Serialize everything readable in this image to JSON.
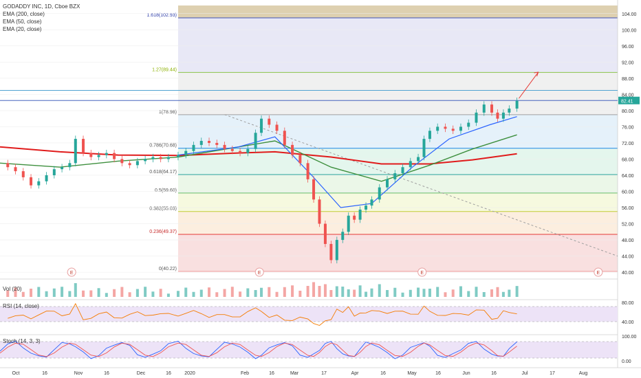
{
  "legend": {
    "symbol": "GODADDY INC, 1D, Cboe BZX",
    "ema200": "EMA (200, close)",
    "ema50": "EMA (50, close)",
    "ema20": "EMA (20, close)",
    "vol": "Vol (20)",
    "rsi": "RSI (14, close)",
    "stoch": "Stoch (14, 3, 3)"
  },
  "price_scale": [
    "104.00",
    "100.00",
    "96.00",
    "92.00",
    "88.00",
    "84.00",
    "80.00",
    "76.00",
    "72.00",
    "68.00",
    "64.00",
    "60.00",
    "56.00",
    "52.00",
    "48.00",
    "44.00",
    "40.00"
  ],
  "last_price": "82.41",
  "rsi_scale": [
    "80.00",
    "40.00"
  ],
  "stoch_scale": [
    "100.00",
    "0.00"
  ],
  "time_axis": [
    "Oct",
    "16",
    "Nov",
    "16",
    "Dec",
    "16",
    "2020",
    "Feb",
    "16",
    "Mar",
    "17",
    "Apr",
    "16",
    "May",
    "16",
    "Jun",
    "16",
    "Jul",
    "17",
    "Aug"
  ],
  "earnings_marker": "E",
  "colors": {
    "up": "#26a69a",
    "down": "#ef5350",
    "ema200": "#e01b1b",
    "ema50": "#3d8f3d",
    "ema20": "#2962ff",
    "rsi": "#f57c00",
    "stoch_k": "#2962ff",
    "stoch_d": "#ef5350",
    "fib_text_1618": "#2a3aa8",
    "fib_text_127": "#8bb000"
  },
  "chart_data": {
    "type": "candlestick",
    "x_range": [
      "2019-10-01",
      "2020-08-15"
    ],
    "y_range": [
      39,
      106
    ],
    "fib_levels": [
      {
        "label": "0(40.22)",
        "value": 40.22,
        "color": "#ef9a9a"
      },
      {
        "label": "0.236(49.37)",
        "value": 49.37,
        "color": "#e53935"
      },
      {
        "label": "0.382(55.03)",
        "value": 55.03,
        "color": "#c0ca33"
      },
      {
        "label": "0.5(59.60)",
        "value": 59.6,
        "color": "#66bb6a"
      },
      {
        "label": "0.618(64.17)",
        "value": 64.17,
        "color": "#26a69a"
      },
      {
        "label": "0.786(70.68)",
        "value": 70.68,
        "color": "#1e88e5"
      },
      {
        "label": "1(78.98)",
        "value": 78.98,
        "color": "#9e9e9e"
      },
      {
        "label": "1.27(89.44)",
        "value": 89.44,
        "color": "#8bc34a"
      },
      {
        "label": "1.618(102.93)",
        "value": 102.93,
        "color": "#3f51b5"
      }
    ],
    "horizontal_lines": [
      85,
      82.5
    ],
    "closes": [
      {
        "date": "2019-10-01",
        "close": 67.0
      },
      {
        "date": "2019-10-05",
        "close": 66.0
      },
      {
        "date": "2019-10-09",
        "close": 65.0
      },
      {
        "date": "2019-10-13",
        "close": 63.5
      },
      {
        "date": "2019-10-17",
        "close": 61.5
      },
      {
        "date": "2019-10-21",
        "close": 62.5
      },
      {
        "date": "2019-10-25",
        "close": 64.0
      },
      {
        "date": "2019-10-29",
        "close": 65.5
      },
      {
        "date": "2019-11-02",
        "close": 66.0
      },
      {
        "date": "2019-11-06",
        "close": 67.0
      },
      {
        "date": "2019-11-09",
        "close": 73.0
      },
      {
        "date": "2019-11-13",
        "close": 69.5
      },
      {
        "date": "2019-11-17",
        "close": 68.5
      },
      {
        "date": "2019-11-21",
        "close": 69.0
      },
      {
        "date": "2019-11-25",
        "close": 69.5
      },
      {
        "date": "2019-11-29",
        "close": 68.0
      },
      {
        "date": "2019-12-03",
        "close": 67.0
      },
      {
        "date": "2019-12-07",
        "close": 66.5
      },
      {
        "date": "2019-12-11",
        "close": 67.5
      },
      {
        "date": "2019-12-15",
        "close": 68.0
      },
      {
        "date": "2019-12-19",
        "close": 68.5
      },
      {
        "date": "2019-12-23",
        "close": 68.0
      },
      {
        "date": "2019-12-27",
        "close": 68.5
      },
      {
        "date": "2020-01-01",
        "close": 69.0
      },
      {
        "date": "2020-01-05",
        "close": 70.0
      },
      {
        "date": "2020-01-09",
        "close": 71.5
      },
      {
        "date": "2020-01-13",
        "close": 72.5
      },
      {
        "date": "2020-01-17",
        "close": 72.0
      },
      {
        "date": "2020-01-21",
        "close": 71.5
      },
      {
        "date": "2020-01-25",
        "close": 70.5
      },
      {
        "date": "2020-01-29",
        "close": 70.0
      },
      {
        "date": "2020-02-02",
        "close": 69.5
      },
      {
        "date": "2020-02-06",
        "close": 70.5
      },
      {
        "date": "2020-02-10",
        "close": 74.5
      },
      {
        "date": "2020-02-13",
        "close": 78.0
      },
      {
        "date": "2020-02-17",
        "close": 76.5
      },
      {
        "date": "2020-02-21",
        "close": 75.0
      },
      {
        "date": "2020-02-25",
        "close": 71.5
      },
      {
        "date": "2020-02-29",
        "close": 69.0
      },
      {
        "date": "2020-03-04",
        "close": 67.0
      },
      {
        "date": "2020-03-08",
        "close": 63.0
      },
      {
        "date": "2020-03-11",
        "close": 58.0
      },
      {
        "date": "2020-03-14",
        "close": 52.0
      },
      {
        "date": "2020-03-17",
        "close": 47.0
      },
      {
        "date": "2020-03-20",
        "close": 43.0
      },
      {
        "date": "2020-03-23",
        "close": 48.0
      },
      {
        "date": "2020-03-26",
        "close": 50.0
      },
      {
        "date": "2020-03-29",
        "close": 54.0
      },
      {
        "date": "2020-04-01",
        "close": 53.0
      },
      {
        "date": "2020-04-04",
        "close": 55.5
      },
      {
        "date": "2020-04-07",
        "close": 56.5
      },
      {
        "date": "2020-04-10",
        "close": 58.0
      },
      {
        "date": "2020-04-14",
        "close": 61.0
      },
      {
        "date": "2020-04-18",
        "close": 63.0
      },
      {
        "date": "2020-04-22",
        "close": 64.5
      },
      {
        "date": "2020-04-26",
        "close": 66.0
      },
      {
        "date": "2020-04-30",
        "close": 67.5
      },
      {
        "date": "2020-05-04",
        "close": 68.5
      },
      {
        "date": "2020-05-07",
        "close": 73.0
      },
      {
        "date": "2020-05-10",
        "close": 75.0
      },
      {
        "date": "2020-05-14",
        "close": 76.0
      },
      {
        "date": "2020-05-18",
        "close": 75.5
      },
      {
        "date": "2020-05-22",
        "close": 75.0
      },
      {
        "date": "2020-05-26",
        "close": 76.0
      },
      {
        "date": "2020-05-30",
        "close": 77.0
      },
      {
        "date": "2020-06-03",
        "close": 79.5
      },
      {
        "date": "2020-06-07",
        "close": 81.5
      },
      {
        "date": "2020-06-11",
        "close": 79.5
      },
      {
        "date": "2020-06-14",
        "close": 78.0
      },
      {
        "date": "2020-06-17",
        "close": 79.5
      },
      {
        "date": "2020-06-20",
        "close": 80.5
      },
      {
        "date": "2020-06-24",
        "close": 82.41
      }
    ],
    "ema200": [
      {
        "date": "2019-10-01",
        "value": 71.0
      },
      {
        "date": "2019-11-01",
        "value": 69.8
      },
      {
        "date": "2019-12-01",
        "value": 69.0
      },
      {
        "date": "2020-01-01",
        "value": 68.9
      },
      {
        "date": "2020-02-01",
        "value": 69.5
      },
      {
        "date": "2020-02-20",
        "value": 69.8
      },
      {
        "date": "2020-03-20",
        "value": 68.5
      },
      {
        "date": "2020-04-15",
        "value": 66.8
      },
      {
        "date": "2020-05-10",
        "value": 66.8
      },
      {
        "date": "2020-06-01",
        "value": 67.8
      },
      {
        "date": "2020-06-24",
        "value": 69.3
      }
    ],
    "ema50": [
      {
        "date": "2019-10-01",
        "value": 67.0
      },
      {
        "date": "2019-11-01",
        "value": 66.0
      },
      {
        "date": "2019-12-01",
        "value": 67.5
      },
      {
        "date": "2020-01-01",
        "value": 68.5
      },
      {
        "date": "2020-02-01",
        "value": 71.0
      },
      {
        "date": "2020-02-20",
        "value": 72.5
      },
      {
        "date": "2020-03-20",
        "value": 66.0
      },
      {
        "date": "2020-04-15",
        "value": 62.5
      },
      {
        "date": "2020-05-10",
        "value": 66.5
      },
      {
        "date": "2020-06-01",
        "value": 70.5
      },
      {
        "date": "2020-06-24",
        "value": 74.0
      }
    ],
    "ema20": [
      {
        "date": "2020-01-01",
        "value": 69.0
      },
      {
        "date": "2020-02-01",
        "value": 71.0
      },
      {
        "date": "2020-02-20",
        "value": 73.5
      },
      {
        "date": "2020-03-10",
        "value": 64.0
      },
      {
        "date": "2020-03-25",
        "value": 56.0
      },
      {
        "date": "2020-04-10",
        "value": 57.0
      },
      {
        "date": "2020-05-01",
        "value": 66.0
      },
      {
        "date": "2020-05-20",
        "value": 73.0
      },
      {
        "date": "2020-06-10",
        "value": 76.5
      },
      {
        "date": "2020-06-24",
        "value": 78.5
      }
    ],
    "trendline": [
      {
        "date": "2020-01-25",
        "value": 79.0
      },
      {
        "date": "2020-08-15",
        "value": 44.0
      }
    ],
    "projection_arrow": [
      {
        "date": "2020-06-25",
        "value": 83.0
      },
      {
        "date": "2020-07-05",
        "value": 89.5
      }
    ],
    "earnings_dates": [
      "2019-11-07",
      "2020-02-12",
      "2020-05-06",
      "2020-08-05"
    ]
  }
}
